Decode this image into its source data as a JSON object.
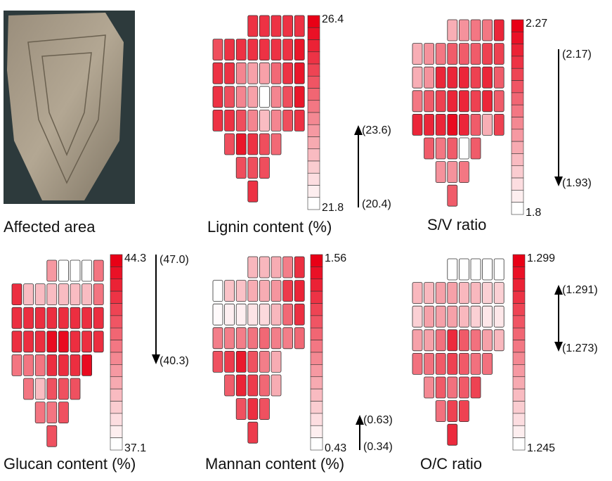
{
  "panels": [
    {
      "title": "Affected area"
    },
    {
      "title": "Lignin content (%)",
      "colorbar": {
        "max": 26.4,
        "min": 21.8
      },
      "arrow": {
        "direction": "up",
        "start": "(20.4)",
        "end": "(23.6)"
      },
      "cells": [
        [
          null,
          null,
          null,
          25.5,
          25.5,
          25.5,
          25.5,
          25.5
        ],
        [
          25,
          25.5,
          25.5,
          25.5,
          25.5,
          25.5,
          25.5,
          26
        ],
        [
          25.5,
          25.5,
          24,
          23.5,
          23.5,
          24.5,
          25.5,
          26
        ],
        [
          25.5,
          25,
          24,
          23.5,
          21.8,
          24,
          25,
          26
        ],
        [
          25.5,
          25.5,
          25,
          24,
          23,
          24,
          25,
          25.5
        ],
        [
          null,
          25,
          26,
          25.5,
          25,
          24.5,
          null,
          null
        ],
        [
          null,
          null,
          25,
          25,
          25,
          null,
          null,
          null
        ],
        [
          null,
          null,
          null,
          25.5,
          null,
          null,
          null,
          null
        ]
      ]
    },
    {
      "title": "S/V ratio",
      "colorbar": {
        "max": 2.27,
        "min": 1.8
      },
      "arrow": {
        "direction": "down",
        "start": "(2.17)",
        "end": "(1.93)"
      },
      "cells": [
        [
          null,
          null,
          null,
          1.95,
          2.0,
          2.05,
          2.05,
          2.2
        ],
        [
          1.95,
          2.0,
          2.05,
          2.1,
          2.1,
          2.1,
          2.15,
          2.15
        ],
        [
          1.95,
          2.0,
          2.2,
          2.2,
          2.2,
          2.15,
          2.2,
          2.1
        ],
        [
          2.05,
          2.1,
          2.15,
          2.2,
          2.2,
          2.15,
          2.2,
          2.1
        ],
        [
          2.2,
          2.2,
          2.2,
          2.25,
          2.2,
          2.1,
          1.95,
          2.15
        ],
        [
          null,
          2.1,
          2.05,
          2.1,
          1.8,
          2.1,
          null,
          null
        ],
        [
          null,
          null,
          2.0,
          2.0,
          2.05,
          null,
          null,
          null
        ],
        [
          null,
          null,
          null,
          2.1,
          null,
          null,
          null,
          null
        ]
      ]
    },
    {
      "title": "Glucan content (%)",
      "colorbar": {
        "max": 44.3,
        "min": 37.1
      },
      "arrow": {
        "direction": "down",
        "start": "(47.0)",
        "end": "(40.3)"
      },
      "cells": [
        [
          null,
          null,
          null,
          40,
          37.1,
          37.1,
          37.1,
          41
        ],
        [
          43,
          39,
          39,
          39,
          39,
          39,
          39,
          41
        ],
        [
          43,
          43,
          43,
          43,
          43,
          43,
          43,
          43
        ],
        [
          43,
          43,
          43,
          44,
          44,
          43,
          43,
          43
        ],
        [
          41,
          41,
          41,
          43,
          43,
          43,
          44,
          null
        ],
        [
          null,
          41,
          39,
          42,
          42,
          42,
          null,
          null
        ],
        [
          null,
          null,
          41,
          41,
          42,
          null,
          null,
          null
        ],
        [
          null,
          null,
          null,
          42,
          null,
          null,
          null,
          null
        ]
      ]
    },
    {
      "title": "Mannan content (%)",
      "colorbar": {
        "max": 1.56,
        "min": 0.43
      },
      "arrow": {
        "direction": "up",
        "start": "(0.34)",
        "end": "(0.63)"
      },
      "cells": [
        [
          null,
          null,
          null,
          0.75,
          0.75,
          0.8,
          1.0,
          1.35
        ],
        [
          0.43,
          0.7,
          0.7,
          0.8,
          0.8,
          0.9,
          1.3,
          1.4
        ],
        [
          0.45,
          0.5,
          0.5,
          0.55,
          0.6,
          0.75,
          1.1,
          1.35
        ],
        [
          1.0,
          1.0,
          1.0,
          1.05,
          1.1,
          1.0,
          1.0,
          1.1
        ],
        [
          1.2,
          1.3,
          1.45,
          1.2,
          1.0,
          0.8,
          null,
          null
        ],
        [
          null,
          1.15,
          1.4,
          1.3,
          1.1,
          0.8,
          null,
          null
        ],
        [
          null,
          null,
          1.2,
          1.35,
          1.2,
          null,
          null,
          null
        ],
        [
          null,
          null,
          null,
          1.3,
          null,
          null,
          null,
          null
        ]
      ]
    },
    {
      "title": "O/C ratio",
      "colorbar": {
        "max": 1.299,
        "min": 1.245
      },
      "arrow": {
        "direction": "both",
        "start": "(1.291)",
        "end": "(1.273)"
      },
      "cells": [
        [
          null,
          null,
          null,
          1.245,
          1.245,
          1.245,
          1.245,
          1.245
        ],
        [
          1.26,
          1.26,
          1.265,
          1.265,
          1.26,
          1.26,
          1.255,
          1.255
        ],
        [
          1.255,
          1.265,
          1.265,
          1.265,
          1.26,
          1.255,
          1.25,
          1.25
        ],
        [
          1.265,
          1.265,
          1.275,
          1.29,
          1.28,
          1.275,
          1.265,
          1.26
        ],
        [
          1.275,
          1.275,
          1.28,
          1.285,
          1.28,
          1.275,
          1.275,
          null
        ],
        [
          null,
          1.27,
          1.28,
          1.275,
          1.28,
          1.285,
          null,
          null
        ],
        [
          null,
          null,
          1.275,
          1.285,
          1.285,
          null,
          null,
          null
        ],
        [
          null,
          null,
          null,
          1.29,
          null,
          null,
          null,
          null
        ]
      ]
    }
  ]
}
